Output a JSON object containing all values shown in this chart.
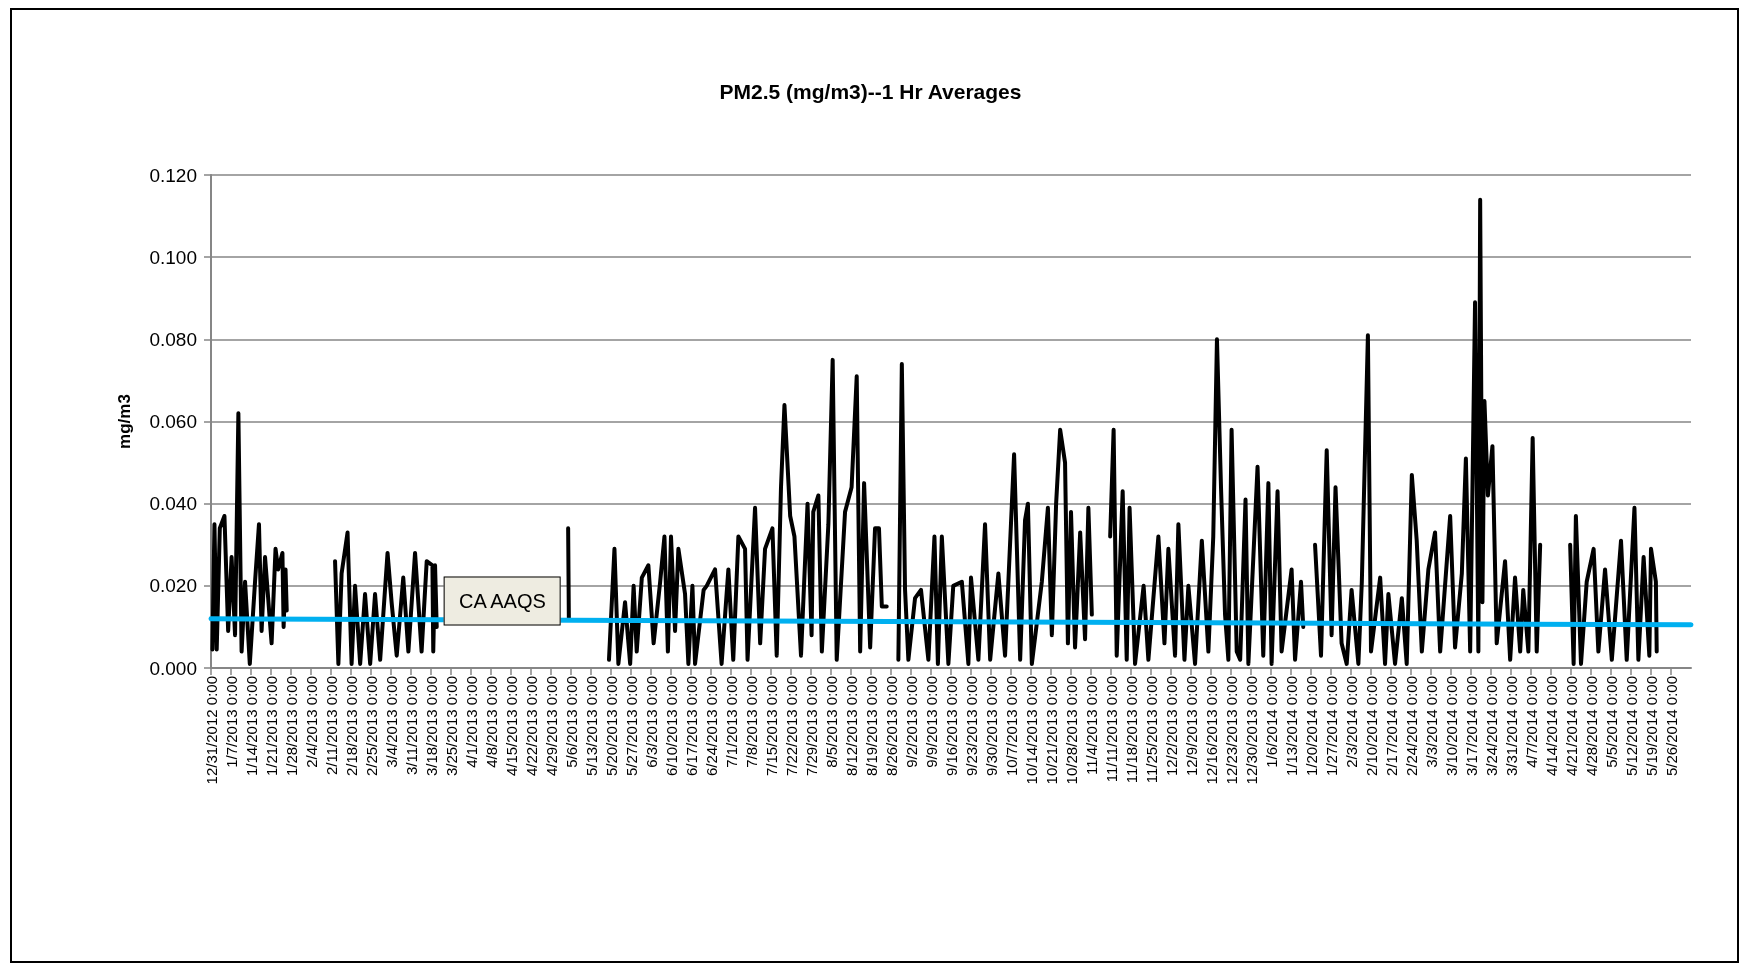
{
  "chart_data": {
    "type": "line",
    "title": "PM2.5 (mg/m3)--1 Hr Averages",
    "ylabel": "mg/m3",
    "xlim": [
      "2012-12-31",
      "2014-06-02"
    ],
    "ylim": [
      0,
      0.12
    ],
    "yticks": [
      {
        "value": 0,
        "label": "0.000"
      },
      {
        "value": 0.02,
        "label": "0.020"
      },
      {
        "value": 0.04,
        "label": "0.040"
      },
      {
        "value": 0.06,
        "label": "0.060"
      },
      {
        "value": 0.08,
        "label": "0.080"
      },
      {
        "value": 0.1,
        "label": "0.100"
      },
      {
        "value": 0.12,
        "label": "0.120"
      }
    ],
    "xticks": [
      {
        "value": "2012-12-31",
        "label": "12/31/2012 0:00"
      },
      {
        "value": "2013-01-07",
        "label": "1/7/2013 0:00"
      },
      {
        "value": "2013-01-14",
        "label": "1/14/2013 0:00"
      },
      {
        "value": "2013-01-21",
        "label": "1/21/2013 0:00"
      },
      {
        "value": "2013-01-28",
        "label": "1/28/2013 0:00"
      },
      {
        "value": "2013-02-04",
        "label": "2/4/2013 0:00"
      },
      {
        "value": "2013-02-11",
        "label": "2/11/2013 0:00"
      },
      {
        "value": "2013-02-18",
        "label": "2/18/2013 0:00"
      },
      {
        "value": "2013-02-25",
        "label": "2/25/2013 0:00"
      },
      {
        "value": "2013-03-04",
        "label": "3/4/2013 0:00"
      },
      {
        "value": "2013-03-11",
        "label": "3/11/2013 0:00"
      },
      {
        "value": "2013-03-18",
        "label": "3/18/2013 0:00"
      },
      {
        "value": "2013-03-25",
        "label": "3/25/2013 0:00"
      },
      {
        "value": "2013-04-01",
        "label": "4/1/2013 0:00"
      },
      {
        "value": "2013-04-08",
        "label": "4/8/2013 0:00"
      },
      {
        "value": "2013-04-15",
        "label": "4/15/2013 0:00"
      },
      {
        "value": "2013-04-22",
        "label": "4/22/2013 0:00"
      },
      {
        "value": "2013-04-29",
        "label": "4/29/2013 0:00"
      },
      {
        "value": "2013-05-06",
        "label": "5/6/2013 0:00"
      },
      {
        "value": "2013-05-13",
        "label": "5/13/2013 0:00"
      },
      {
        "value": "2013-05-20",
        "label": "5/20/2013 0:00"
      },
      {
        "value": "2013-05-27",
        "label": "5/27/2013 0:00"
      },
      {
        "value": "2013-06-03",
        "label": "6/3/2013 0:00"
      },
      {
        "value": "2013-06-10",
        "label": "6/10/2013 0:00"
      },
      {
        "value": "2013-06-17",
        "label": "6/17/2013 0:00"
      },
      {
        "value": "2013-06-24",
        "label": "6/24/2013 0:00"
      },
      {
        "value": "2013-07-01",
        "label": "7/1/2013 0:00"
      },
      {
        "value": "2013-07-08",
        "label": "7/8/2013 0:00"
      },
      {
        "value": "2013-07-15",
        "label": "7/15/2013 0:00"
      },
      {
        "value": "2013-07-22",
        "label": "7/22/2013 0:00"
      },
      {
        "value": "2013-07-29",
        "label": "7/29/2013 0:00"
      },
      {
        "value": "2013-08-05",
        "label": "8/5/2013 0:00"
      },
      {
        "value": "2013-08-12",
        "label": "8/12/2013 0:00"
      },
      {
        "value": "2013-08-19",
        "label": "8/19/2013 0:00"
      },
      {
        "value": "2013-08-26",
        "label": "8/26/2013 0:00"
      },
      {
        "value": "2013-09-02",
        "label": "9/2/2013 0:00"
      },
      {
        "value": "2013-09-09",
        "label": "9/9/2013 0:00"
      },
      {
        "value": "2013-09-16",
        "label": "9/16/2013 0:00"
      },
      {
        "value": "2013-09-23",
        "label": "9/23/2013 0:00"
      },
      {
        "value": "2013-09-30",
        "label": "9/30/2013 0:00"
      },
      {
        "value": "2013-10-07",
        "label": "10/7/2013 0:00"
      },
      {
        "value": "2013-10-14",
        "label": "10/14/2013 0:00"
      },
      {
        "value": "2013-10-21",
        "label": "10/21/2013 0:00"
      },
      {
        "value": "2013-10-28",
        "label": "10/28/2013 0:00"
      },
      {
        "value": "2013-11-04",
        "label": "11/4/2013 0:00"
      },
      {
        "value": "2013-11-11",
        "label": "11/11/2013 0:00"
      },
      {
        "value": "2013-11-18",
        "label": "11/18/2013 0:00"
      },
      {
        "value": "2013-11-25",
        "label": "11/25/2013 0:00"
      },
      {
        "value": "2013-12-02",
        "label": "12/2/2013 0:00"
      },
      {
        "value": "2013-12-09",
        "label": "12/9/2013 0:00"
      },
      {
        "value": "2013-12-16",
        "label": "12/16/2013 0:00"
      },
      {
        "value": "2013-12-23",
        "label": "12/23/2013 0:00"
      },
      {
        "value": "2013-12-30",
        "label": "12/30/2013 0:00"
      },
      {
        "value": "2014-01-06",
        "label": "1/6/2014 0:00"
      },
      {
        "value": "2014-01-13",
        "label": "1/13/2014 0:00"
      },
      {
        "value": "2014-01-20",
        "label": "1/20/2014 0:00"
      },
      {
        "value": "2014-01-27",
        "label": "1/27/2014 0:00"
      },
      {
        "value": "2014-02-03",
        "label": "2/3/2014 0:00"
      },
      {
        "value": "2014-02-10",
        "label": "2/10/2014 0:00"
      },
      {
        "value": "2014-02-17",
        "label": "2/17/2014 0:00"
      },
      {
        "value": "2014-02-24",
        "label": "2/24/2014 0:00"
      },
      {
        "value": "2014-03-03",
        "label": "3/3/2014 0:00"
      },
      {
        "value": "2014-03-10",
        "label": "3/10/2014 0:00"
      },
      {
        "value": "2014-03-17",
        "label": "3/17/2014 0:00"
      },
      {
        "value": "2014-03-24",
        "label": "3/24/2014 0:00"
      },
      {
        "value": "2014-03-31",
        "label": "3/31/2014 0:00"
      },
      {
        "value": "2014-04-07",
        "label": "4/7/2014 0:00"
      },
      {
        "value": "2014-04-14",
        "label": "4/14/2014 0:00"
      },
      {
        "value": "2014-04-21",
        "label": "4/21/2014 0:00"
      },
      {
        "value": "2014-04-28",
        "label": "4/28/2014 0:00"
      },
      {
        "value": "2014-05-05",
        "label": "5/5/2014 0:00"
      },
      {
        "value": "2014-05-12",
        "label": "5/12/2014 0:00"
      },
      {
        "value": "2014-05-19",
        "label": "5/19/2014 0:00"
      },
      {
        "value": "2014-05-26",
        "label": "5/26/2014 0:00"
      }
    ],
    "annotations": [
      {
        "text": "CA AAQS",
        "x": "2013-04-12",
        "y": 0.012
      }
    ],
    "grid": "y",
    "marker": "none",
    "line_style": "solid",
    "series": [
      {
        "color": "#000000",
        "x": [
          "2012-12-31T12:00",
          "2013-01-01T05:00",
          "2013-01-02T00:00",
          "2013-01-03T02:00",
          "2013-01-04T17:00",
          "2013-01-06T00:00",
          "2013-01-07T05:00",
          "2013-01-08T10:00",
          "2013-01-09T14:00",
          "2013-01-10T17:00",
          "2013-01-11T22:00",
          "2013-01-13T14:00",
          "2013-01-15T10:00",
          "2013-01-16T19:00",
          "2013-01-17T17:00",
          "2013-01-18T22:00",
          "2013-01-21T05:00",
          "2013-01-22T14:00",
          "2013-01-23T12:00",
          "2013-01-25T00:00",
          "2013-01-25T10:00",
          "2013-01-26T02:00",
          "2013-01-26T12:00",
          "2013-01-27T00:00",
          "2013-02-12T10:00",
          "2013-02-13T14:00",
          "2013-02-14T17:00",
          "2013-02-16T19:00",
          "2013-02-18T05:00",
          "2013-02-19T10:00",
          "2013-02-21T05:00",
          "2013-02-22T22:00",
          "2013-02-24T17:00",
          "2013-02-26T10:00",
          "2013-02-28T05:00",
          "2013-03-02T19:00",
          "2013-03-04T05:00",
          "2013-03-06T00:00",
          "2013-03-08T07:00",
          "2013-03-10T02:00",
          "2013-03-12T10:00",
          "2013-03-14T17:00",
          "2013-03-16T12:00",
          "2013-03-18T12:00",
          "2013-03-18T19:00",
          "2013-03-19T10:00",
          "2013-03-20T00:00",
          "2013-03-21T00:00",
          "2013-05-05T00:00",
          "2013-05-05T06:00",
          "2013-05-06T00:00",
          "2013-05-19T07:00",
          "2013-05-21T05:00",
          "2013-05-22T14:00",
          "2013-05-24T22:00",
          "2013-05-26T17:00",
          "2013-05-27T22:00",
          "2013-05-29T00:00",
          "2013-05-30T19:00",
          "2013-06-02T02:00",
          "2013-06-03T22:00",
          "2013-06-06T05:00",
          "2013-06-07T17:00",
          "2013-06-08T22:00",
          "2013-06-10T00:00",
          "2013-06-11T10:00",
          "2013-06-12T14:00",
          "2013-06-14T22:00",
          "2013-06-16T02:00",
          "2013-06-17T12:00",
          "2013-06-18T10:00",
          "2013-06-21T10:00",
          "2013-06-22T12:00",
          "2013-06-25T10:00",
          "2013-06-27T17:00",
          "2013-06-30T02:00",
          "2013-07-01T19:00",
          "2013-07-03T14:00",
          "2013-07-05T22:00",
          "2013-07-06T19:00",
          "2013-07-09T10:00",
          "2013-07-11T05:00",
          "2013-07-12T22:00",
          "2013-07-15T12:00",
          "2013-07-17T00:00",
          "2013-07-18T12:00",
          "2013-07-19T17:00",
          "2013-07-21T17:00",
          "2013-07-23T05:00",
          "2013-07-25T12:00",
          "2013-07-27T19:00",
          "2013-07-29T05:00",
          "2013-07-29T19:00",
          "2013-07-31T14:00",
          "2013-08-01T19:00",
          "2013-08-04T02:00",
          "2013-08-05T14:00",
          "2013-08-07T00:00",
          "2013-08-09T22:00",
          "2013-08-12T05:00",
          "2013-08-14T00:00",
          "2013-08-15T05:00",
          "2013-08-16T14:00",
          "2013-08-18T17:00",
          "2013-08-20T10:00",
          "2013-08-21T19:00",
          "2013-08-22T19:00",
          "2013-08-24T12:00",
          "2013-08-25T12:00",
          "2013-08-28T14:00",
          "2013-08-29T19:00",
          "2013-08-30T22:00",
          "2013-09-01T02:00",
          "2013-09-03T10:00",
          "2013-09-05T12:00",
          "2013-09-08T02:00",
          "2013-09-10T05:00",
          "2013-09-11T10:00",
          "2013-09-12T19:00",
          "2013-09-15T02:00",
          "2013-09-16T19:00",
          "2013-09-19T19:00",
          "2013-09-22T02:00",
          "2013-09-23T00:00",
          "2013-09-25T14:00",
          "2013-09-27T22:00",
          "2013-09-29T17:00",
          "2013-10-02T14:00",
          "2013-10-04T22:00",
          "2013-10-08T02:00",
          "2013-10-10T05:00",
          "2013-10-11T22:00",
          "2013-10-12T22:00",
          "2013-10-14T07:00",
          "2013-10-17T19:00",
          "2013-10-19T22:00",
          "2013-10-21T07:00",
          "2013-10-22T19:00",
          "2013-10-24T05:00",
          "2013-10-25T22:00",
          "2013-10-26T22:00",
          "2013-10-28T00:00",
          "2013-10-29T10:00",
          "2013-10-31T05:00",
          "2013-11-01T22:00",
          "2013-11-03T02:00",
          "2013-11-04T07:00",
          "2013-11-06T00:00",
          "2013-11-10T17:00",
          "2013-11-11T22:00",
          "2013-11-13T00:00",
          "2013-11-15T02:00",
          "2013-11-16T12:00",
          "2013-11-17T12:00",
          "2013-11-19T10:00",
          "2013-11-22T10:00",
          "2013-11-24T02:00",
          "2013-11-27T14:00",
          "2013-11-29T17:00",
          "2013-12-01T02:00",
          "2013-12-03T10:00",
          "2013-12-04T14:00",
          "2013-12-06T17:00",
          "2013-12-08T02:00",
          "2013-12-10T10:00",
          "2013-12-12T19:00",
          "2013-12-15T02:00",
          "2013-12-16T19:00",
          "2013-12-18T02:00",
          "2013-12-19T12:00",
          "2013-12-20T22:00",
          "2013-12-22T02:00",
          "2013-12-23T05:00",
          "2013-12-25T00:00",
          "2013-12-26T05:00",
          "2013-12-28T02:00",
          "2013-12-29T02:00",
          "2014-01-01T07:00",
          "2014-01-03T07:00",
          "2014-01-05T02:00",
          "2014-01-06T05:00",
          "2014-01-08T07:00",
          "2014-01-09T17:00",
          "2014-01-13T05:00",
          "2014-01-14T10:00",
          "2014-01-16T12:00",
          "2014-01-17T07:00",
          "2014-01-19T00:00",
          "2014-01-21T10:00",
          "2014-01-23T12:00",
          "2014-01-25T12:00",
          "2014-01-27T05:00",
          "2014-01-28T14:00",
          "2014-01-30T17:00",
          "2014-02-01T12:00",
          "2014-02-03T05:00",
          "2014-02-05T14:00",
          "2014-02-06T19:00",
          "2014-02-08T22:00",
          "2014-02-10T00:00",
          "2014-02-13T05:00",
          "2014-02-14T22:00",
          "2014-02-16T02:00",
          "2014-02-18T10:00",
          "2014-02-20T19:00",
          "2014-02-22T12:00",
          "2014-02-24T07:00",
          "2014-02-26T00:00",
          "2014-02-27T19:00",
          "2014-03-02T02:00",
          "2014-03-04T10:00",
          "2014-03-06T05:00",
          "2014-03-09T17:00",
          "2014-03-11T10:00",
          "2014-03-13T19:00",
          "2014-03-15T05:00",
          "2014-03-16T17:00",
          "2014-03-18T10:00",
          "2014-03-19T14:00",
          "2014-03-20T05:00",
          "2014-03-21T00:00",
          "2014-03-21T17:00",
          "2014-03-22T22:00",
          "2014-03-24T12:00",
          "2014-03-26T00:00",
          "2014-03-28T22:00",
          "2014-03-30T17:00",
          "2014-04-01T10:00",
          "2014-04-03T05:00",
          "2014-04-04T07:00",
          "2014-04-06T02:00",
          "2014-04-07T14:00",
          "2014-04-09T00:00",
          "2014-04-10T05:00",
          "2014-04-13T00:00",
          "2014-04-20T17:00",
          "2014-04-21T22:00",
          "2014-04-22T17:00",
          "2014-04-24T12:00",
          "2014-04-26T12:00",
          "2014-04-28T22:00",
          "2014-04-30T14:00",
          "2014-05-02T22:00",
          "2014-05-05T07:00",
          "2014-05-08T12:00",
          "2014-05-10T12:00",
          "2014-05-13T05:00",
          "2014-05-14T14:00",
          "2014-05-16T10:00",
          "2014-05-18T10:00",
          "2014-05-19T00:00",
          "2014-05-20T17:00",
          "2014-05-21T00:00"
        ],
        "values": [
          0.0045,
          0.035,
          0.0045,
          0.034,
          0.037,
          0.009,
          0.027,
          0.008,
          0.062,
          0.004,
          0.021,
          0.001,
          0.021,
          0.035,
          0.009,
          0.027,
          0.006,
          0.029,
          0.024,
          0.028,
          0.01,
          0.024,
          0.014,
          null,
          0.026,
          0.001,
          0.023,
          0.033,
          0.001,
          0.02,
          0.001,
          0.018,
          0.001,
          0.018,
          0.002,
          0.028,
          0.016,
          0.003,
          0.022,
          0.004,
          0.028,
          0.004,
          0.026,
          0.025,
          0.004,
          0.025,
          0.01,
          null,
          0.034,
          0.012,
          null,
          0.002,
          0.029,
          0.001,
          0.016,
          0.001,
          0.02,
          0.004,
          0.022,
          0.025,
          0.006,
          0.021,
          0.032,
          0.004,
          0.032,
          0.009,
          0.029,
          0.018,
          0.001,
          0.02,
          0.001,
          0.019,
          0.02,
          0.024,
          0.001,
          0.024,
          0.002,
          0.032,
          0.029,
          0.002,
          0.039,
          0.006,
          0.029,
          0.034,
          0.003,
          0.044,
          0.064,
          0.037,
          0.032,
          0.003,
          0.04,
          0.008,
          0.038,
          0.042,
          0.004,
          0.035,
          0.075,
          0.002,
          0.038,
          0.044,
          0.071,
          0.004,
          0.045,
          0.005,
          0.034,
          0.034,
          0.015,
          0.015,
          null,
          0.002,
          0.074,
          0.019,
          0.002,
          0.017,
          0.019,
          0.002,
          0.032,
          0.001,
          0.032,
          0.001,
          0.02,
          0.021,
          0.001,
          0.022,
          0.002,
          0.035,
          0.002,
          0.023,
          0.003,
          0.052,
          0.002,
          0.036,
          0.04,
          0.001,
          0.021,
          0.039,
          0.008,
          0.04,
          0.058,
          0.05,
          0.006,
          0.038,
          0.005,
          0.033,
          0.007,
          0.039,
          0.013,
          null,
          0.032,
          0.058,
          0.003,
          0.043,
          0.002,
          0.039,
          0.001,
          0.02,
          0.002,
          0.032,
          0.006,
          0.029,
          0.003,
          0.035,
          0.002,
          0.02,
          0.001,
          0.031,
          0.004,
          0.032,
          0.08,
          0.044,
          0.013,
          0.002,
          0.058,
          0.004,
          0.002,
          0.041,
          0.001,
          0.049,
          0.003,
          0.045,
          0.001,
          0.043,
          0.004,
          0.024,
          0.002,
          0.021,
          0.01,
          null,
          0.03,
          0.003,
          0.053,
          0.008,
          0.044,
          0.006,
          0.001,
          0.019,
          0.001,
          0.021,
          0.081,
          0.004,
          0.022,
          0.001,
          0.018,
          0.001,
          0.017,
          0.001,
          0.047,
          0.031,
          0.004,
          0.024,
          0.033,
          0.004,
          0.037,
          0.005,
          0.023,
          0.051,
          0.004,
          0.089,
          0.004,
          0.114,
          0.016,
          0.065,
          0.042,
          0.054,
          0.006,
          0.026,
          0.002,
          0.022,
          0.004,
          0.019,
          0.004,
          0.056,
          0.004,
          0.03,
          null,
          0.03,
          0.001,
          0.037,
          0.001,
          0.021,
          0.029,
          0.004,
          0.024,
          0.002,
          0.031,
          0.002,
          0.039,
          0.002,
          0.027,
          0.003,
          0.029,
          0.021,
          0.004
        ]
      },
      {
        "color": "#00b0f0",
        "x": [
          "2012-12-31",
          "2014-06-02"
        ],
        "values": [
          0.012,
          0.0105
        ]
      }
    ]
  }
}
